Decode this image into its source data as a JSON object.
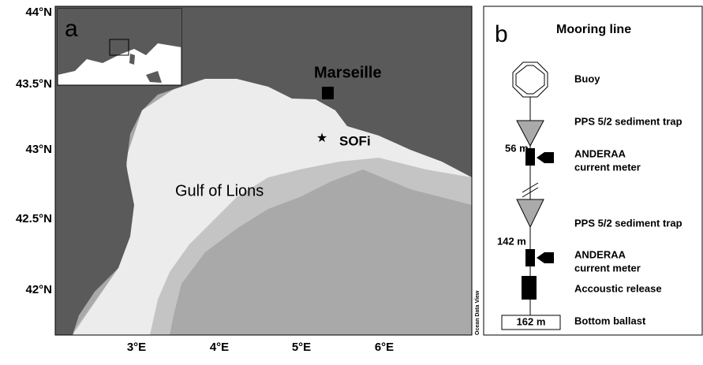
{
  "map": {
    "panel_label": "a",
    "city": "Marseille",
    "station": "SOFi",
    "sea": "Gulf of Lions",
    "credit": "Ocean Data View",
    "lat_labels": [
      "44°N",
      "43.5°N",
      "43°N",
      "42.5°N",
      "42°N"
    ],
    "lon_labels": [
      "3°E",
      "4°E",
      "5°E",
      "6°E"
    ]
  },
  "mooring": {
    "panel_label": "b",
    "title": "Mooring line",
    "depths": [
      "56 m",
      "142 m",
      "162 m"
    ],
    "items": [
      "Buoy",
      "PPS 5/2 sediment trap",
      "ANDERAA",
      "current meter",
      "PPS 5/2 sediment trap",
      "ANDERAA",
      "current meter",
      "Accoustic release",
      "Bottom ballast"
    ]
  }
}
